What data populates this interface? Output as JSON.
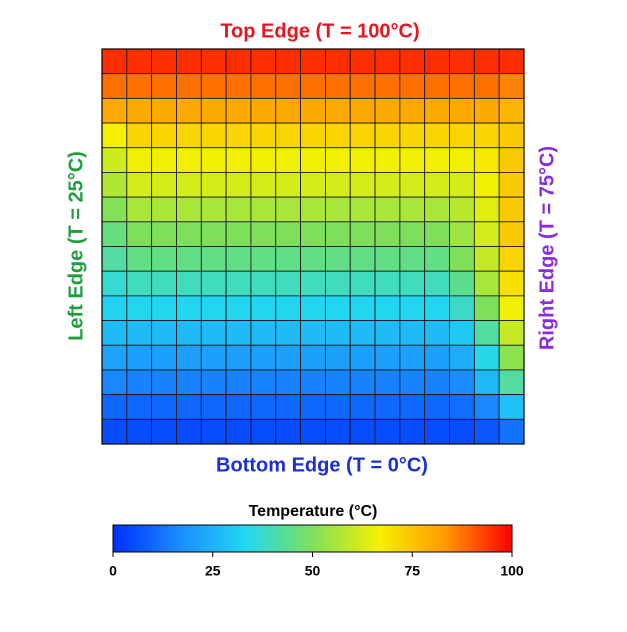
{
  "chart_data": {
    "type": "heatmap",
    "top_label": "Top Edge (T = 100°C)",
    "top_color": "#e8141e",
    "bottom_label": "Bottom Edge (T = 0°C)",
    "bottom_color": "#1a2fd6",
    "left_label": "Left Edge (T = 25°C)",
    "left_color": "#1e9e3c",
    "right_label": "Right Edge (T = 75°C)",
    "right_color": "#8a2be2",
    "values": [
      [
        95,
        95,
        95,
        95,
        95,
        95,
        95,
        95,
        95,
        95,
        95,
        95,
        95,
        95,
        95,
        95,
        95
      ],
      [
        88,
        88,
        88,
        88,
        88,
        88,
        88,
        88,
        88,
        88,
        88,
        88,
        88,
        88,
        88,
        88,
        86
      ],
      [
        80,
        80,
        80,
        80,
        80,
        80,
        80,
        80,
        80,
        80,
        80,
        80,
        80,
        80,
        80,
        80,
        78
      ],
      [
        67,
        72,
        72,
        72,
        72,
        72,
        72,
        72,
        72,
        72,
        72,
        72,
        72,
        72,
        72,
        72,
        74
      ],
      [
        61,
        66,
        66,
        66,
        66,
        66,
        66,
        66,
        66,
        66,
        66,
        66,
        66,
        66,
        66,
        68,
        74
      ],
      [
        57,
        62,
        62,
        62,
        62,
        62,
        62,
        62,
        62,
        62,
        62,
        62,
        62,
        62,
        62,
        66,
        74
      ],
      [
        51,
        56,
        56,
        56,
        56,
        56,
        56,
        56,
        56,
        56,
        56,
        56,
        56,
        56,
        58,
        64,
        74
      ],
      [
        46,
        50,
        50,
        50,
        50,
        50,
        50,
        50,
        50,
        50,
        50,
        50,
        50,
        50,
        54,
        62,
        74
      ],
      [
        42,
        45,
        45,
        45,
        45,
        45,
        45,
        45,
        45,
        45,
        45,
        45,
        45,
        45,
        50,
        60,
        72
      ],
      [
        37,
        39,
        39,
        39,
        39,
        39,
        39,
        39,
        39,
        39,
        39,
        39,
        39,
        39,
        44,
        56,
        70
      ],
      [
        32,
        33,
        33,
        33,
        33,
        33,
        33,
        33,
        33,
        33,
        33,
        33,
        33,
        33,
        38,
        50,
        66
      ],
      [
        27,
        27,
        27,
        27,
        27,
        27,
        27,
        27,
        27,
        27,
        27,
        27,
        27,
        27,
        30,
        42,
        60
      ],
      [
        22,
        21,
        21,
        21,
        21,
        21,
        21,
        21,
        21,
        21,
        21,
        21,
        21,
        21,
        24,
        34,
        52
      ],
      [
        16,
        15,
        15,
        15,
        15,
        15,
        15,
        15,
        15,
        15,
        15,
        15,
        15,
        15,
        17,
        26,
        42
      ],
      [
        10,
        10,
        10,
        10,
        10,
        10,
        10,
        10,
        10,
        10,
        10,
        10,
        10,
        10,
        11,
        16,
        28
      ],
      [
        5,
        5,
        5,
        5,
        5,
        5,
        5,
        5,
        5,
        5,
        5,
        5,
        5,
        5,
        5,
        7,
        12
      ]
    ],
    "colorbar_title": "Temperature (°C)",
    "clim": [
      0,
      100
    ],
    "cticks": [
      0,
      25,
      50,
      75,
      100
    ],
    "colormap": [
      "#0030ff",
      "#1a8cff",
      "#22d8f0",
      "#7ee05a",
      "#f5f000",
      "#ff9a00",
      "#ff0000"
    ]
  }
}
